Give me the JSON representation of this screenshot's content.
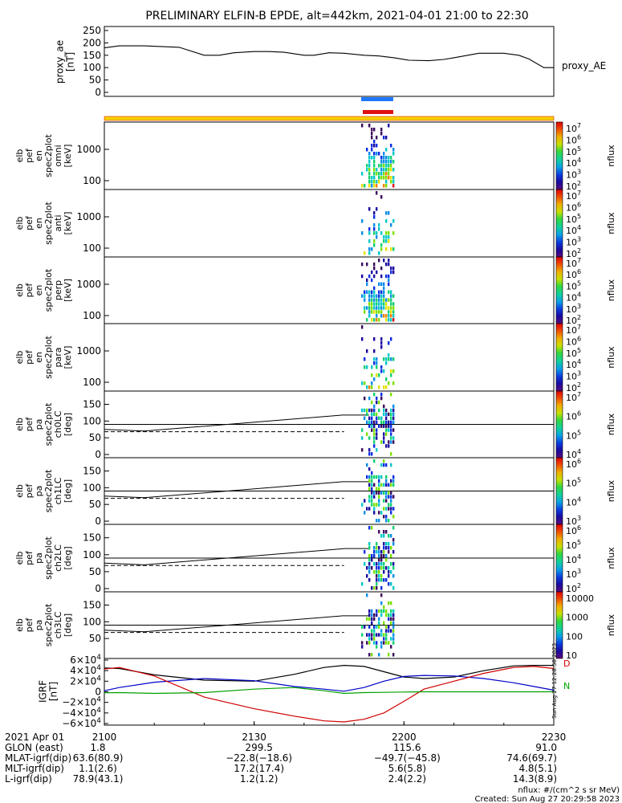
{
  "title": "PRELIMINARY ELFIN-B EPDE, alt=442km, 2021-04-01 21:00 to 22:30",
  "panels": {
    "ae": {
      "ylabel_lines": [
        "proxy_ae",
        "[nT]"
      ],
      "yticks": [
        "250",
        "200",
        "150",
        "100",
        "50",
        "0"
      ],
      "right_label": "proxy_AE"
    },
    "spec": [
      {
        "ylabel_lines": [
          "elb",
          "pef",
          "en",
          "spec2plot",
          "omni",
          "[keV]"
        ],
        "yticks": [
          "1000",
          "100"
        ]
      },
      {
        "ylabel_lines": [
          "elb",
          "pef",
          "en",
          "spec2plot",
          "anti",
          "[keV]"
        ],
        "yticks": [
          "1000",
          "100"
        ]
      },
      {
        "ylabel_lines": [
          "elb",
          "pef",
          "en",
          "spec2plot",
          "perp",
          "[keV]"
        ],
        "yticks": [
          "1000",
          "100"
        ]
      },
      {
        "ylabel_lines": [
          "elb",
          "pef",
          "en",
          "spec2plot",
          "para",
          "[keV]"
        ],
        "yticks": [
          "1000",
          "100"
        ]
      },
      {
        "ylabel_lines": [
          "elb",
          "pef",
          "pa",
          "spec2plot",
          "ch0LC",
          "[deg]"
        ],
        "yticks": [
          "150",
          "100",
          "50",
          "0"
        ]
      },
      {
        "ylabel_lines": [
          "elb",
          "pef",
          "pa",
          "spec2plot",
          "ch1LC",
          "[deg]"
        ],
        "yticks": [
          "150",
          "100",
          "50",
          "0"
        ]
      },
      {
        "ylabel_lines": [
          "elb",
          "pef",
          "pa",
          "spec2plot",
          "ch2LC",
          "[deg]"
        ],
        "yticks": [
          "150",
          "100",
          "50",
          "0"
        ]
      },
      {
        "ylabel_lines": [
          "elb",
          "pef",
          "pa",
          "spec2plot",
          "ch3LC",
          "[deg]"
        ],
        "yticks": [
          "150",
          "100",
          "50"
        ]
      }
    ],
    "colorbars": [
      {
        "unit": "nflux",
        "ticks": [
          {
            "b": "10",
            "e": "7"
          },
          {
            "b": "10",
            "e": "6"
          },
          {
            "b": "10",
            "e": "5"
          },
          {
            "b": "10",
            "e": "4"
          },
          {
            "b": "10",
            "e": "3"
          },
          {
            "b": "10",
            "e": "2"
          }
        ]
      },
      {
        "unit": "nflux",
        "ticks": [
          {
            "b": "10",
            "e": "7"
          },
          {
            "b": "10",
            "e": "6"
          },
          {
            "b": "10",
            "e": "5"
          },
          {
            "b": "10",
            "e": "4"
          },
          {
            "b": "10",
            "e": "3"
          },
          {
            "b": "10",
            "e": "2"
          }
        ]
      },
      {
        "unit": "nflux",
        "ticks": [
          {
            "b": "10",
            "e": "7"
          },
          {
            "b": "10",
            "e": "6"
          },
          {
            "b": "10",
            "e": "5"
          },
          {
            "b": "10",
            "e": "4"
          },
          {
            "b": "10",
            "e": "3"
          },
          {
            "b": "10",
            "e": "2"
          }
        ]
      },
      {
        "unit": "nflux",
        "ticks": [
          {
            "b": "10",
            "e": "7"
          },
          {
            "b": "10",
            "e": "6"
          },
          {
            "b": "10",
            "e": "5"
          },
          {
            "b": "10",
            "e": "4"
          },
          {
            "b": "10",
            "e": "3"
          },
          {
            "b": "10",
            "e": "2"
          }
        ]
      },
      {
        "unit": "nflux",
        "ticks": [
          {
            "b": "10",
            "e": "7"
          },
          {
            "b": "10",
            "e": "6"
          },
          {
            "b": "10",
            "e": "5"
          },
          {
            "b": "10",
            "e": "4"
          }
        ]
      },
      {
        "unit": "nflux",
        "ticks": [
          {
            "b": "10",
            "e": "6"
          },
          {
            "b": "10",
            "e": "5"
          },
          {
            "b": "10",
            "e": "4"
          },
          {
            "b": "10",
            "e": "3"
          }
        ]
      },
      {
        "unit": "nflux",
        "ticks": [
          {
            "b": "10",
            "e": "6"
          },
          {
            "b": "10",
            "e": "5"
          },
          {
            "b": "10",
            "e": "4"
          },
          {
            "b": "10",
            "e": "3"
          },
          {
            "b": "10",
            "e": "2"
          }
        ]
      },
      {
        "unit": "nflux",
        "ticks": [
          {
            "b": "",
            "e": "",
            "t": "10000"
          },
          {
            "b": "",
            "e": "",
            "t": "1000"
          },
          {
            "b": "",
            "e": "",
            "t": "100"
          },
          {
            "b": "",
            "e": "",
            "t": "10"
          }
        ]
      }
    ],
    "igrf": {
      "ylabel_lines": [
        "IGRF",
        "[nT]"
      ],
      "yticks": [
        {
          "m": "6",
          "e": "4",
          "s": ""
        },
        {
          "m": "4",
          "e": "4",
          "s": ""
        },
        {
          "m": "2",
          "e": "4",
          "s": ""
        },
        {
          "m": "0",
          "e": "",
          "s": ""
        },
        {
          "m": "2",
          "e": "4",
          "s": "−"
        },
        {
          "m": "4",
          "e": "4",
          "s": "−"
        },
        {
          "m": "6",
          "e": "4",
          "s": "−"
        }
      ],
      "side_text": "Sun Aug 27 12:28:58 2023",
      "legend": [
        {
          "letter": "D",
          "color": "#d00000"
        },
        {
          "letter": "N",
          "color": "#00a000"
        }
      ]
    }
  },
  "xaxis": {
    "rows": [
      {
        "label": "2021 Apr 01",
        "values": [
          "2100",
          "2130",
          "2200",
          "2230"
        ]
      },
      {
        "label": "GLON (east)",
        "values": [
          "1.8",
          "299.5",
          "115.6",
          "91.0"
        ]
      },
      {
        "label": "MLAT-igrf(dip)",
        "values": [
          "63.6(80.9)",
          "−22.8(−18.6)",
          "−49.7(−45.8)",
          "74.6(69.7)"
        ]
      },
      {
        "label": "MLT-igrf(dip)",
        "values": [
          "1.1(2.6)",
          "17.2(17.4)",
          "5.6(5.8)",
          "4.8(5.1)"
        ]
      },
      {
        "label": "L-igrf(dip)",
        "values": [
          "78.9(43.1)",
          "1.2(1.2)",
          "2.4(2.2)",
          "14.3(8.9)"
        ]
      }
    ]
  },
  "footer": {
    "units": "nflux: #/(cm^2 s sr MeV)",
    "created": "Created: Sun Aug 27 20:29:58 2023"
  },
  "colors": {
    "orbit_bar": "#f5d000",
    "orbit_bar_edge": "#e53000",
    "ind_blue": "#1e78ff",
    "ind_red": "#e01010",
    "igrf_total": "#000000",
    "igrf_h": "#0000c8",
    "igrf_d": "#d00000",
    "igrf_n": "#00a000"
  },
  "chart_data": {
    "type": "line",
    "title": "PRELIMINARY ELFIN-B EPDE, alt=442km, 2021-04-01 21:00 to 22:30",
    "x_ticks": [
      "2100",
      "2130",
      "2200",
      "2230"
    ],
    "x_range_minutes": [
      0,
      90
    ],
    "series": [
      {
        "name": "proxy_AE",
        "ylim": [
          0,
          250
        ],
        "x": [
          0,
          3,
          8,
          15,
          20,
          23,
          26,
          30,
          33,
          36,
          40,
          42,
          45,
          48,
          52,
          55,
          58,
          61,
          65,
          68,
          70,
          75,
          80,
          83,
          85,
          88,
          90
        ],
        "y": [
          180,
          188,
          188,
          182,
          150,
          150,
          160,
          165,
          165,
          162,
          150,
          150,
          160,
          158,
          150,
          147,
          140,
          130,
          128,
          133,
          140,
          158,
          158,
          150,
          135,
          100,
          100
        ]
      }
    ],
    "igrf": {
      "ylim": [
        -60000,
        60000
      ],
      "x": [
        0,
        3,
        10,
        20,
        30,
        38,
        44,
        48,
        52,
        56,
        60,
        64,
        70,
        76,
        82,
        86,
        90
      ],
      "total": [
        45000,
        44000,
        32000,
        22000,
        20000,
        33000,
        46000,
        50000,
        48000,
        38000,
        28000,
        25000,
        28000,
        40000,
        49000,
        50000,
        50000
      ],
      "h": [
        2000,
        8000,
        18000,
        25000,
        21000,
        10000,
        5000,
        1000,
        8000,
        20000,
        29000,
        31000,
        30000,
        25000,
        17000,
        10000,
        3000
      ],
      "d": [
        43000,
        46000,
        30000,
        -10000,
        -32000,
        -46000,
        -55000,
        -57000,
        -52000,
        -40000,
        -18000,
        5000,
        20000,
        35000,
        46000,
        48000,
        44000
      ],
      "n": [
        -2000,
        -1500,
        -3000,
        -1500,
        5000,
        8000,
        2000,
        -3000,
        -1500,
        -1000,
        -500,
        0,
        0,
        0,
        0,
        0,
        0
      ]
    },
    "pitch_angle_boundary": {
      "solid_x": [
        0,
        8,
        48
      ],
      "solid_y": [
        75,
        70,
        118
      ],
      "dashed_y": 68,
      "loss_cone_ref_y": 90
    }
  }
}
